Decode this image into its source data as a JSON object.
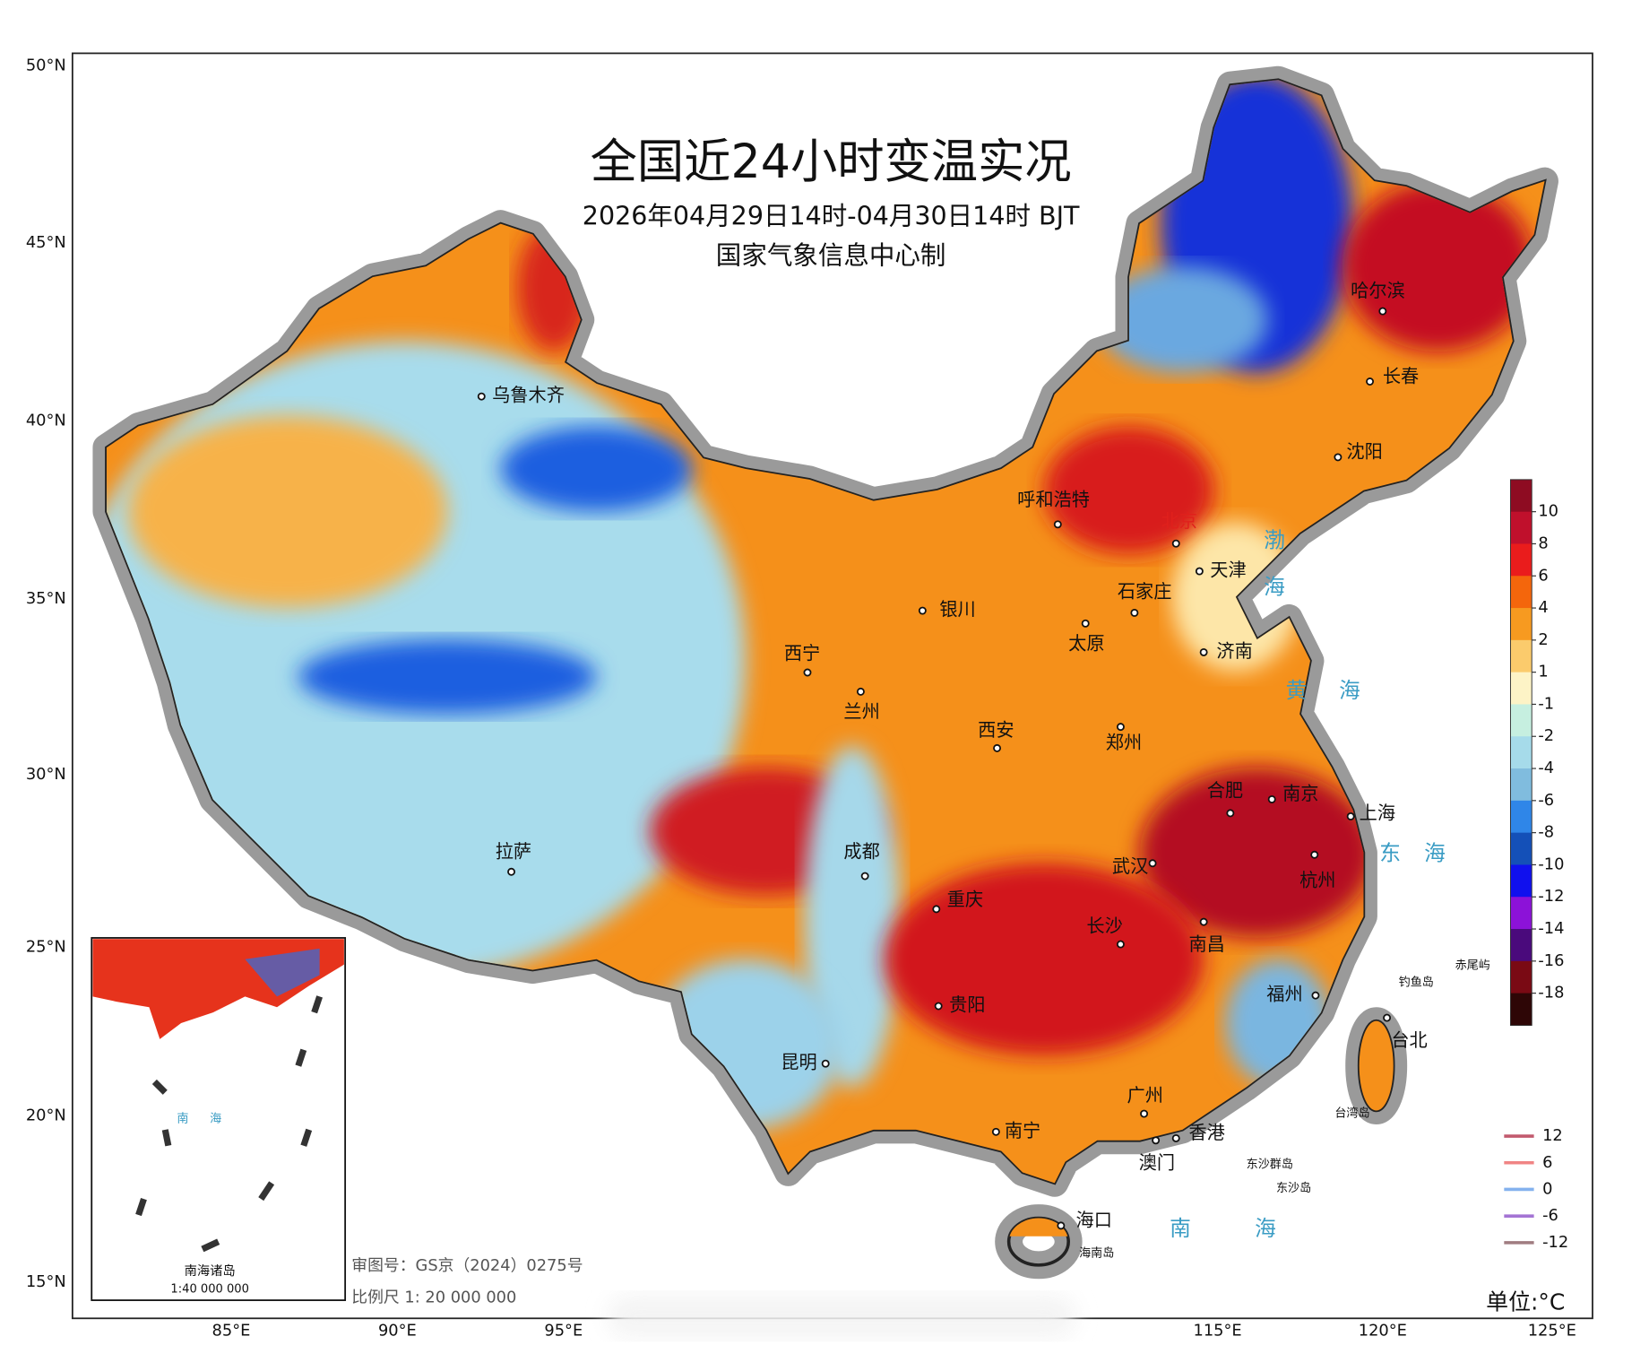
{
  "header": {
    "title": "全国近24小时变温实况",
    "subtitle": "2026年04月29日14时-04月30日14时 BJT",
    "producer": "国家气象信息中心制"
  },
  "axes": {
    "lat_ticks": [
      "50°N",
      "45°N",
      "40°N",
      "35°N",
      "30°N",
      "25°N",
      "20°N",
      "15°N"
    ],
    "lon_ticks": [
      "85°E",
      "90°E",
      "95°E",
      "115°E",
      "120°E",
      "125°E"
    ]
  },
  "colorbar": {
    "labels": [
      10,
      8,
      6,
      4,
      2,
      1,
      -1,
      -2,
      -4,
      -6,
      -8,
      -10,
      -12,
      -14,
      -16,
      -18
    ],
    "colors": [
      "#8e0c22",
      "#c0102c",
      "#ea1c1c",
      "#f4660c",
      "#f79a20",
      "#fbcb6c",
      "#fdf3c6",
      "#c6efe0",
      "#a6dbea",
      "#80bcde",
      "#2f86e8",
      "#1450b8",
      "#1010ee",
      "#8c12d8",
      "#4a0a7c",
      "#7a0a14",
      "#2e0606"
    ]
  },
  "contour_legend": {
    "labels": [
      12,
      6,
      0,
      -6,
      -12
    ],
    "colors": [
      "#c25a6e",
      "#f08484",
      "#84b2ee",
      "#a474d4",
      "#a07c80"
    ]
  },
  "cities": [
    "乌鲁木齐",
    "拉萨",
    "西宁",
    "兰州",
    "银川",
    "呼和浩特",
    "北京",
    "天津",
    "石家庄",
    "太原",
    "济南",
    "西安",
    "郑州",
    "成都",
    "重庆",
    "武汉",
    "合肥",
    "南京",
    "上海",
    "杭州",
    "南昌",
    "长沙",
    "贵阳",
    "昆明",
    "南宁",
    "广州",
    "香港",
    "澳门",
    "福州",
    "台北",
    "海口",
    "哈尔滨",
    "长春",
    "沈阳"
  ],
  "places": [
    "海南岛",
    "东沙群岛",
    "东沙岛",
    "钓鱼岛",
    "赤尾屿",
    "台湾岛"
  ],
  "seas": [
    "渤海",
    "黄海",
    "东海",
    "南海"
  ],
  "inset": {
    "title": "南海诸岛",
    "scale": "1:40 000 000",
    "sea": "南海"
  },
  "notes": [
    "审图号：GS京（2024）0275号",
    "比例尺 1: 20 000 000"
  ],
  "unit": "单位:°C"
}
